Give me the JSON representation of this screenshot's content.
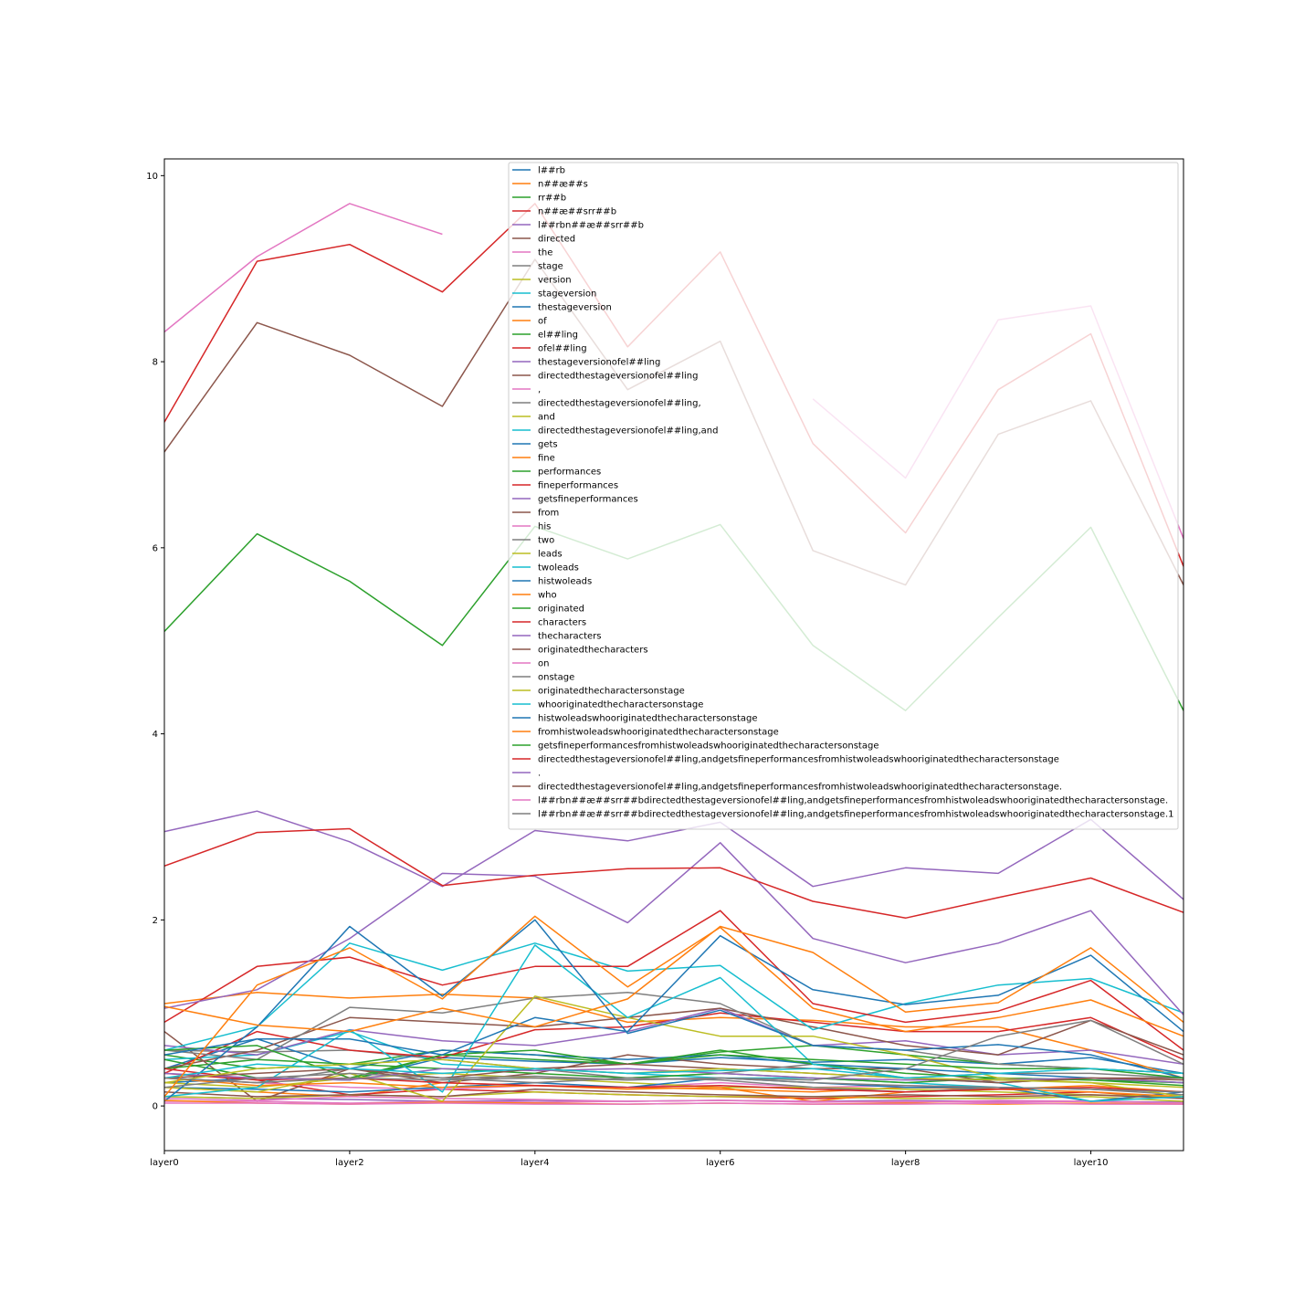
{
  "chart_data": {
    "type": "line",
    "title": "",
    "xlabel": "",
    "ylabel": "",
    "x": [
      "layer0",
      "layer1",
      "layer2",
      "layer3",
      "layer4",
      "layer5",
      "layer6",
      "layer7",
      "layer8",
      "layer9",
      "layer10",
      "layer11"
    ],
    "x_tick_labels": [
      "layer0",
      "layer2",
      "layer4",
      "layer6",
      "layer8",
      "layer10"
    ],
    "y_ticks": [
      0,
      2,
      4,
      6,
      8,
      10
    ],
    "ylim": [
      -0.48,
      10.18
    ],
    "grid": false,
    "legend_placement": "upper-center",
    "series": [
      {
        "name": "l##rb",
        "color": "#1f77b4",
        "values": [
          0.25,
          0.3,
          0.28,
          0.52,
          0.48,
          0.45,
          0.52,
          0.47,
          0.5,
          0.45,
          0.52,
          0.35
        ]
      },
      {
        "name": "n##æ##s",
        "color": "#ff7f0e",
        "values": [
          0.2,
          0.15,
          0.1,
          0.25,
          0.22,
          0.2,
          0.18,
          0.15,
          0.2,
          0.18,
          0.22,
          0.15
        ]
      },
      {
        "name": "rr##b",
        "color": "#2ca02c",
        "values": [
          0.55,
          0.4,
          0.45,
          0.6,
          0.55,
          0.45,
          0.58,
          0.65,
          0.55,
          0.45,
          0.4,
          0.35
        ]
      },
      {
        "name": "n##æ##srr##b",
        "color": "#d62728",
        "values": [
          0.35,
          0.28,
          0.12,
          0.18,
          0.15,
          0.12,
          0.1,
          0.08,
          0.1,
          0.12,
          0.15,
          0.08
        ]
      },
      {
        "name": "l##rbn##æ##srr##b",
        "color": "#9467bd",
        "values": [
          0.1,
          0.08,
          0.07,
          0.05,
          0.06,
          0.05,
          0.06,
          0.05,
          0.06,
          0.05,
          0.05,
          0.04
        ]
      },
      {
        "name": "directed",
        "color": "#8c564b",
        "values": [
          0.8,
          0.05,
          0.4,
          0.25,
          0.35,
          0.55,
          0.45,
          0.4,
          0.4,
          0.25,
          0.3,
          0.3
        ]
      },
      {
        "name": "the",
        "color": "#e377c2",
        "values": [
          0.3,
          0.25,
          0.2,
          0.18,
          0.22,
          0.2,
          0.25,
          0.2,
          0.22,
          0.2,
          0.18,
          0.15
        ]
      },
      {
        "name": "stage",
        "color": "#7f7f7f",
        "values": [
          0.6,
          0.58,
          0.6,
          0.5,
          0.4,
          0.3,
          0.35,
          0.45,
          0.3,
          0.35,
          0.35,
          0.3
        ]
      },
      {
        "name": "version",
        "color": "#bcbd22",
        "values": [
          0.25,
          0.2,
          0.3,
          0.35,
          0.3,
          0.25,
          0.2,
          0.2,
          0.18,
          0.15,
          0.12,
          0.1
        ]
      },
      {
        "name": "stageversion",
        "color": "#17becf",
        "values": [
          0.5,
          0.55,
          0.8,
          0.45,
          0.4,
          0.35,
          0.3,
          0.3,
          0.25,
          0.2,
          0.18,
          0.15
        ]
      },
      {
        "name": "thestageversion",
        "color": "#1f77b4",
        "values": [
          0.4,
          0.72,
          0.4,
          0.6,
          0.55,
          0.5,
          0.55,
          0.45,
          0.4,
          0.35,
          0.3,
          0.25
        ]
      },
      {
        "name": "of",
        "color": "#ff7f0e",
        "values": [
          1.1,
          1.22,
          1.16,
          1.2,
          1.16,
          0.9,
          0.95,
          0.92,
          0.85,
          0.85,
          0.6,
          0.3
        ]
      },
      {
        "name": "el##ling",
        "color": "#2ca02c",
        "values": [
          0.5,
          0.3,
          0.28,
          0.55,
          0.6,
          0.45,
          0.6,
          0.45,
          0.35,
          0.3,
          0.28,
          0.25
        ]
      },
      {
        "name": "ofel##ling",
        "color": "#d62728",
        "values": [
          0.35,
          0.8,
          0.6,
          0.52,
          0.82,
          0.85,
          1.0,
          0.9,
          0.8,
          0.8,
          0.95,
          0.5
        ]
      },
      {
        "name": "thestageversionofel##ling",
        "color": "#9467bd",
        "values": [
          0.65,
          0.55,
          0.82,
          0.7,
          0.65,
          0.8,
          1.05,
          0.65,
          0.7,
          0.55,
          0.6,
          0.45
        ]
      },
      {
        "name": "directedthestageversionofel##ling",
        "color": "#8c564b",
        "values": [
          0.4,
          0.6,
          0.95,
          0.9,
          0.85,
          0.95,
          1.05,
          0.85,
          0.65,
          0.55,
          0.92,
          0.55
        ]
      },
      {
        "name": ",",
        "color": "#e377c2",
        "values": [
          0.05,
          0.05,
          0.03,
          0.05,
          0.04,
          0.05,
          0.06,
          0.04,
          0.05,
          0.04,
          0.05,
          0.03
        ]
      },
      {
        "name": "directedthestageversionofel##ling,",
        "color": "#7f7f7f",
        "values": [
          0.6,
          0.5,
          1.06,
          1.0,
          1.16,
          1.22,
          1.1,
          0.65,
          0.6,
          0.45,
          0.4,
          0.35
        ]
      },
      {
        "name": "and",
        "color": "#bcbd22",
        "values": [
          0.1,
          0.08,
          0.12,
          0.1,
          0.15,
          0.12,
          0.1,
          0.1,
          0.08,
          0.08,
          0.1,
          0.05
        ]
      },
      {
        "name": "directedthestageversionofel##ling,and",
        "color": "#17becf",
        "values": [
          0.6,
          0.85,
          1.75,
          1.46,
          1.75,
          1.45,
          1.51,
          0.82,
          1.1,
          1.3,
          1.37,
          1.0
        ]
      },
      {
        "name": "gets",
        "color": "#1f77b4",
        "values": [
          0.2,
          0.18,
          0.15,
          0.2,
          0.25,
          0.2,
          0.3,
          0.25,
          0.2,
          0.2,
          0.05,
          0.15
        ]
      },
      {
        "name": "fine",
        "color": "#ff7f0e",
        "values": [
          0.3,
          0.22,
          0.25,
          0.2,
          0.22,
          0.18,
          0.2,
          0.05,
          0.15,
          0.18,
          0.15,
          0.1
        ]
      },
      {
        "name": "performances",
        "color": "#2ca02c",
        "values": [
          0.4,
          0.5,
          0.45,
          0.4,
          0.35,
          0.3,
          0.35,
          0.3,
          0.25,
          0.3,
          0.28,
          0.22
        ]
      },
      {
        "name": "fineperformances",
        "color": "#d62728",
        "values": [
          0.9,
          1.5,
          1.6,
          1.3,
          1.5,
          1.5,
          2.1,
          1.1,
          0.9,
          1.02,
          1.35,
          0.6
        ]
      },
      {
        "name": "getsfineperformances",
        "color": "#9467bd",
        "values": [
          1.05,
          1.25,
          1.8,
          2.5,
          2.47,
          1.97,
          2.83,
          1.8,
          1.54,
          1.75,
          2.1,
          0.98
        ]
      },
      {
        "name": "from",
        "color": "#8c564b",
        "values": [
          0.15,
          0.1,
          0.12,
          0.1,
          0.18,
          0.15,
          0.12,
          0.1,
          0.12,
          0.1,
          0.12,
          0.08
        ]
      },
      {
        "name": "his",
        "color": "#e377c2",
        "values": [
          0.08,
          0.06,
          0.1,
          0.08,
          0.07,
          0.05,
          0.06,
          0.05,
          0.04,
          0.06,
          0.05,
          0.03
        ]
      },
      {
        "name": "two",
        "color": "#7f7f7f",
        "values": [
          0.3,
          0.25,
          0.4,
          0.3,
          0.25,
          0.3,
          0.28,
          0.2,
          0.15,
          0.2,
          0.18,
          0.12
        ]
      },
      {
        "name": "leads",
        "color": "#bcbd22",
        "values": [
          0.2,
          0.15,
          0.35,
          0.05,
          1.18,
          0.95,
          0.75,
          0.75,
          0.55,
          0.3,
          0.25,
          0.1
        ]
      },
      {
        "name": "twoleads",
        "color": "#17becf",
        "values": [
          0.1,
          0.2,
          0.82,
          0.15,
          1.73,
          0.95,
          1.38,
          0.45,
          0.3,
          0.25,
          0.05,
          0.1
        ]
      },
      {
        "name": "histwoleads",
        "color": "#1f77b4",
        "values": [
          0.05,
          0.85,
          1.93,
          1.18,
          2.0,
          0.78,
          1.03,
          0.65,
          0.6,
          0.66,
          0.55,
          0.3
        ]
      },
      {
        "name": "who",
        "color": "#ff7f0e",
        "values": [
          0.06,
          0.03,
          0.02,
          0.04,
          0.03,
          0.02,
          0.03,
          0.02,
          0.03,
          0.02,
          0.03,
          0.02
        ]
      },
      {
        "name": "originated",
        "color": "#2ca02c",
        "values": [
          0.6,
          0.65,
          0.3,
          0.55,
          0.5,
          0.45,
          0.55,
          0.5,
          0.45,
          0.4,
          0.4,
          0.3
        ]
      },
      {
        "name": "characters",
        "color": "#d62728",
        "values": [
          0.4,
          0.28,
          0.3,
          0.25,
          0.22,
          0.2,
          0.22,
          0.18,
          0.15,
          0.18,
          0.2,
          0.15
        ]
      },
      {
        "name": "thecharacters",
        "color": "#9467bd",
        "values": [
          0.35,
          0.3,
          0.28,
          0.4,
          0.38,
          0.4,
          0.35,
          0.3,
          0.28,
          0.28,
          0.3,
          0.25
        ]
      },
      {
        "name": "originatedthecharacters",
        "color": "#8c564b",
        "values": [
          0.3,
          0.35,
          0.4,
          0.3,
          0.4,
          0.45,
          0.4,
          0.35,
          0.3,
          0.25,
          0.3,
          0.28
        ]
      },
      {
        "name": "on",
        "color": "#e377c2",
        "values": [
          0.03,
          0.03,
          0.02,
          0.03,
          0.02,
          0.02,
          0.03,
          0.02,
          0.02,
          0.03,
          0.02,
          0.02
        ]
      },
      {
        "name": "onstage",
        "color": "#7f7f7f",
        "values": [
          0.2,
          0.3,
          0.35,
          0.3,
          0.32,
          0.28,
          0.3,
          0.25,
          0.22,
          0.2,
          0.18,
          0.15
        ]
      },
      {
        "name": "originatedthecharactersonstage",
        "color": "#bcbd22",
        "values": [
          0.25,
          0.4,
          0.45,
          0.5,
          0.4,
          0.35,
          0.4,
          0.35,
          0.3,
          0.28,
          0.25,
          0.2
        ]
      },
      {
        "name": "whooriginatedthecharactersonstage",
        "color": "#17becf",
        "values": [
          0.3,
          0.45,
          0.4,
          0.35,
          0.4,
          0.35,
          0.38,
          0.4,
          0.3,
          0.35,
          0.4,
          0.35
        ]
      },
      {
        "name": "histwoleadswhooriginatedthecharactersonstage",
        "color": "#1f77b4",
        "values": [
          0.55,
          0.72,
          0.72,
          0.55,
          0.95,
          0.8,
          1.83,
          1.25,
          1.09,
          1.19,
          1.62,
          0.8
        ]
      },
      {
        "name": "fromhistwoleadswhooriginatedthecharactersonstage",
        "color": "#ff7f0e",
        "values": [
          1.07,
          0.87,
          0.8,
          1.05,
          0.85,
          1.15,
          1.93,
          1.65,
          1.01,
          1.11,
          1.7,
          0.9
        ]
      },
      {
        "name": "getsfineperformancesfromhistwoleadswhooriginatedthecharactersonstage",
        "color": "#2ca02c",
        "values": [
          5.1,
          6.15,
          5.64,
          4.95,
          6.23,
          5.88,
          6.25,
          4.95,
          4.25,
          5.25,
          6.22,
          4.25
        ]
      },
      {
        "name": "directedthestageversionofel##ling,andgetsfineperformancesfromhistwoleadswhooriginatedthecharactersonstage",
        "color": "#d62728",
        "values": [
          7.35,
          9.08,
          9.26,
          8.75,
          9.7,
          8.16,
          9.18,
          7.12,
          6.16,
          7.7,
          8.3,
          5.8
        ]
      },
      {
        "name": ".",
        "color": "#9467bd",
        "values": [
          2.95,
          3.17,
          2.84,
          2.36,
          2.96,
          2.85,
          3.05,
          2.36,
          2.56,
          2.5,
          3.08,
          2.22
        ]
      },
      {
        "name": "directedthestageversionofel##ling,andgetsfineperformancesfromhistwoleadswhooriginatedthecharactersonstage.",
        "color": "#8c564b",
        "values": [
          7.03,
          8.42,
          8.07,
          7.52,
          9.1,
          7.7,
          8.22,
          5.97,
          5.6,
          7.22,
          7.58,
          5.6
        ]
      },
      {
        "name": "l##rbn##æ##srr##bdirectedthestageversionofel##ling,andgetsfineperformancesfromhistwoleadswhooriginatedthecharactersonstage.",
        "color": "#e377c2",
        "values": [
          8.32,
          9.13,
          9.7,
          9.37,
          null,
          null,
          null,
          7.6,
          6.75,
          8.45,
          8.6,
          6.1
        ]
      },
      {
        "name": "l##rbn##æ##srr##bdirectedthestageversionofel##ling,andgetsfineperformancesfromhistwoleadswhooriginatedthecharactersonstage.1",
        "color": "#7f7f7f",
        "values": [
          0.3,
          0.25,
          0.3,
          0.28,
          0.3,
          0.28,
          0.3,
          0.28,
          0.4,
          0.75,
          0.92,
          0.45
        ]
      },
      {
        "name": "",
        "color": "#d62728",
        "values": [
          2.58,
          2.94,
          2.98,
          2.37,
          2.48,
          2.55,
          2.56,
          2.2,
          2.02,
          2.24,
          2.45,
          2.08
        ]
      },
      {
        "name": "",
        "color": "#ff7f0e",
        "values": [
          0.1,
          1.3,
          1.7,
          1.15,
          2.04,
          1.28,
          1.92,
          1.05,
          0.8,
          0.95,
          1.14,
          0.75
        ]
      }
    ]
  }
}
